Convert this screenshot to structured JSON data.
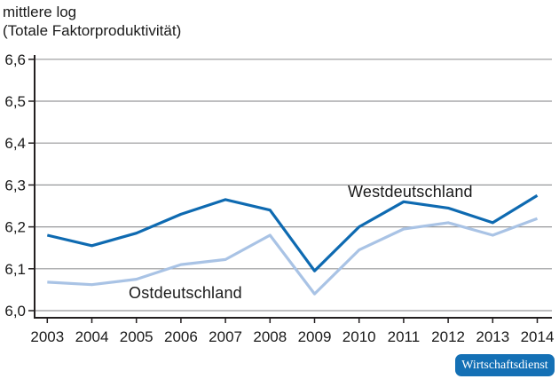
{
  "title": {
    "line1": "mittlere log",
    "line2": "(Totale Faktorproduktivität)"
  },
  "labels": {
    "west": "Westdeutschland",
    "ost": "Ostdeutschland"
  },
  "badge": {
    "text": "Wirtschaftsdienst",
    "background": "#1470b5"
  },
  "colors": {
    "west_line": "#0e6ab1",
    "ost_line": "#a9c3e5",
    "grid": "#97989a",
    "axis": "#231f20",
    "text": "#1a1a1a"
  },
  "chart_data": {
    "type": "line",
    "title": "mittlere log (Totale Faktorproduktivität)",
    "xlabel": "",
    "ylabel": "mittlere log (Totale Faktorproduktivität)",
    "x": [
      "2003",
      "2004",
      "2005",
      "2006",
      "2007",
      "2008",
      "2009",
      "2010",
      "2011",
      "2012",
      "2013",
      "2014"
    ],
    "series": [
      {
        "name": "Westdeutschland",
        "color": "#0e6ab1",
        "values": [
          6.18,
          6.155,
          6.185,
          6.23,
          6.265,
          6.24,
          6.095,
          6.2,
          6.26,
          6.245,
          6.21,
          6.275
        ]
      },
      {
        "name": "Ostdeutschland",
        "color": "#a9c3e5",
        "values": [
          6.068,
          6.062,
          6.075,
          6.11,
          6.122,
          6.18,
          6.04,
          6.145,
          6.195,
          6.21,
          6.18,
          6.22
        ]
      }
    ],
    "ylim": [
      6.0,
      6.6
    ],
    "ytick_step": 0.1,
    "ytick_labels": [
      "6,0",
      "6,1",
      "6,2",
      "6,3",
      "6,4",
      "6,5",
      "6,6"
    ],
    "grid": true,
    "legend_position": "inline-labels"
  }
}
